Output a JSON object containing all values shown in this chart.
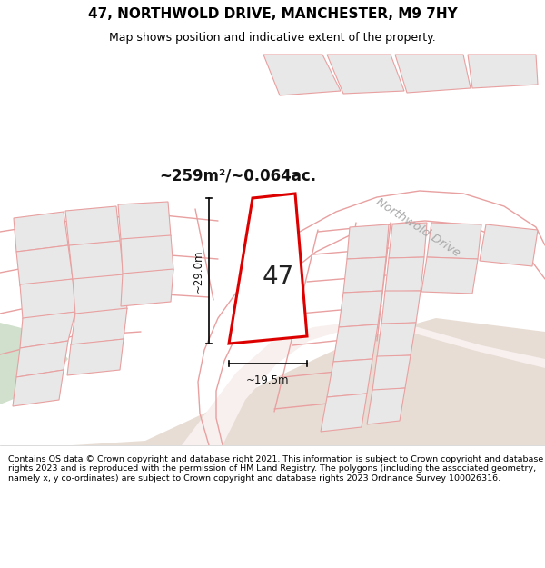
{
  "title": "47, NORTHWOLD DRIVE, MANCHESTER, M9 7HY",
  "subtitle": "Map shows position and indicative extent of the property.",
  "area_text": "~259m²/~0.064ac.",
  "dim_width": "~19.5m",
  "dim_height": "~29.0m",
  "lot_number": "47",
  "street_label": "Northwold Drive",
  "copyright_text": "Contains OS data © Crown copyright and database right 2021. This information is subject to Crown copyright and database rights 2023 and is reproduced with the permission of HM Land Registry. The polygons (including the associated geometry, namely x, y co-ordinates) are subject to Crown copyright and database rights 2023 Ordnance Survey 100026316.",
  "bg_color": "#ffffff",
  "map_bg": "#f5f5f5",
  "footer_bg": "#eeebe6",
  "beige_road": "#e8ddd5",
  "green_area": "#c5d9c0",
  "pink_road": "#f0e0da",
  "neighbor_fill": "#e8e8e8",
  "neighbor_edge": "#e8a0a0",
  "plot_fill": "#ffffff",
  "plot_edge": "#dd0000",
  "title_fontsize": 11,
  "subtitle_fontsize": 9,
  "footer_fontsize": 6.8
}
